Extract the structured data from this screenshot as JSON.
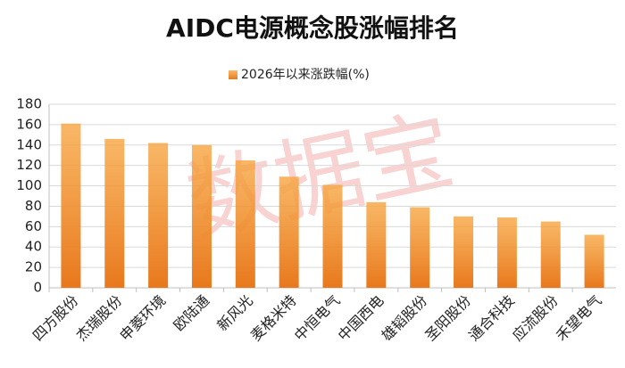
{
  "chart_data": {
    "type": "bar",
    "title": "AIDC电源概念股涨幅排名",
    "watermark": "数据宝",
    "categories": [
      "四方股份",
      "杰瑞股份",
      "申菱环境",
      "欧陆通",
      "新风光",
      "麦格米特",
      "中恒电气",
      "中国西电",
      "雄韬股份",
      "圣阳股份",
      "通合科技",
      "应流股份",
      "禾望电气"
    ],
    "series": [
      {
        "name": "2026年以来涨跌幅(%)",
        "color": "#e8781c",
        "values": [
          161,
          146,
          142,
          140,
          125,
          109,
          101,
          84,
          79,
          70,
          69,
          65,
          52
        ]
      }
    ],
    "ylim": [
      0,
      180
    ],
    "yticks": [
      0,
      20,
      40,
      60,
      80,
      100,
      120,
      140,
      160,
      180
    ],
    "grid": true
  }
}
